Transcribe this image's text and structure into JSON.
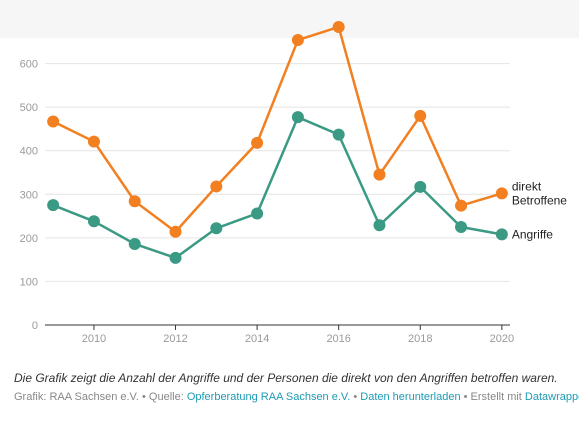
{
  "chart_data": {
    "type": "line",
    "x": [
      2009,
      2010,
      2011,
      2012,
      2013,
      2014,
      2015,
      2016,
      2017,
      2018,
      2019,
      2020
    ],
    "x_ticks": [
      "2010",
      "2012",
      "2014",
      "2016",
      "2018",
      "2020"
    ],
    "y_ticks": [
      "0",
      "100",
      "200",
      "300",
      "400",
      "500",
      "600"
    ],
    "ylim": [
      0,
      700
    ],
    "xlim": [
      2008.8,
      2020.2
    ],
    "grid": true,
    "series": [
      {
        "name": "direkt Betroffene",
        "label_lines": [
          "direkt",
          "Betroffene"
        ],
        "color": "#f27f20",
        "values": [
          467,
          421,
          284,
          214,
          318,
          418,
          654,
          684,
          345,
          480,
          274,
          302
        ]
      },
      {
        "name": "Angriffe",
        "label_lines": [
          "Angriffe"
        ],
        "color": "#3a9a84",
        "values": [
          275,
          238,
          186,
          154,
          222,
          256,
          477,
          437,
          229,
          317,
          225,
          208
        ]
      }
    ]
  },
  "caption": "Die Grafik zeigt die Anzahl der Angriffe und der Personen die direkt von den Angriffen betroffen waren.",
  "credits": {
    "prefix": "Grafik: RAA Sachsen e.V. • Quelle: ",
    "source_link": "Opferberatung RAA Sachsen e.V.",
    "sep1": " • ",
    "download_link": "Daten herunterladen",
    "middle": " • Erstellt mit ",
    "tool_link": "Datawrapper"
  }
}
